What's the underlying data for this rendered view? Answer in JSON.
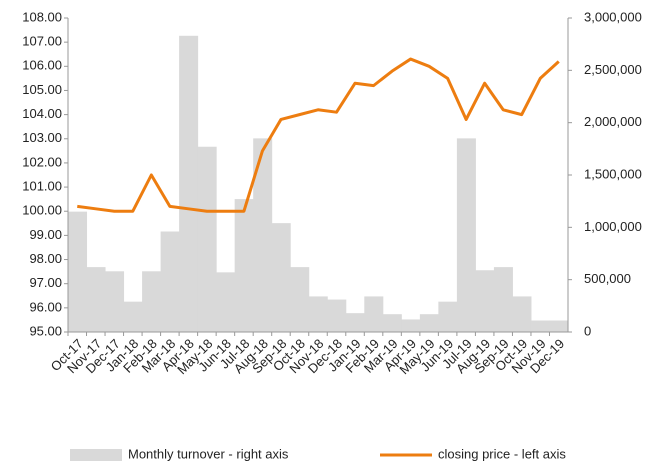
{
  "chart_data": {
    "type": "bar-line",
    "categories": [
      "Oct-17",
      "Nov-17",
      "Dec-17",
      "Jan-18",
      "Feb-18",
      "Mar-18",
      "Apr-18",
      "May-18",
      "Jun-18",
      "Jul-18",
      "Aug-18",
      "Sep-18",
      "Oct-18",
      "Nov-18",
      "Dec-18",
      "Jan-19",
      "Feb-19",
      "Mar-19",
      "Apr-19",
      "May-19",
      "Jun-19",
      "Jul-19",
      "Aug-19",
      "Sep-19",
      "Oct-19",
      "Nov-19",
      "Dec-19"
    ],
    "series": [
      {
        "name": "Monthly turnover - right axis",
        "type": "bar",
        "axis": "y2",
        "color": "#d9d9d9",
        "values": [
          1150000,
          620000,
          580000,
          290000,
          580000,
          960000,
          2830000,
          1770000,
          570000,
          1270000,
          1850000,
          1040000,
          620000,
          340000,
          310000,
          180000,
          340000,
          170000,
          120000,
          170000,
          290000,
          1850000,
          590000,
          620000,
          340000,
          110000,
          110000
        ]
      },
      {
        "name": "closing price - left axis",
        "type": "line",
        "axis": "y",
        "color": "#ed7d10",
        "values": [
          100.2,
          100.1,
          100.0,
          100.0,
          101.5,
          100.2,
          100.1,
          100.0,
          100.0,
          100.0,
          102.5,
          103.8,
          104.0,
          104.2,
          104.1,
          105.3,
          105.2,
          105.8,
          106.3,
          106.0,
          105.5,
          103.8,
          105.3,
          104.2,
          104.0,
          105.5,
          106.2
        ]
      }
    ],
    "ylim": [
      95,
      108
    ],
    "yticks": [
      {
        "value": 95,
        "label": "95.00"
      },
      {
        "value": 96,
        "label": "96.00"
      },
      {
        "value": 97,
        "label": "97.00"
      },
      {
        "value": 98,
        "label": "98.00"
      },
      {
        "value": 99,
        "label": "99.00"
      },
      {
        "value": 100,
        "label": "100.00"
      },
      {
        "value": 101,
        "label": "101.00"
      },
      {
        "value": 102,
        "label": "102.00"
      },
      {
        "value": 103,
        "label": "103.00"
      },
      {
        "value": 104,
        "label": "104.00"
      },
      {
        "value": 105,
        "label": "105.00"
      },
      {
        "value": 106,
        "label": "106.00"
      },
      {
        "value": 107,
        "label": "107.00"
      },
      {
        "value": 108,
        "label": "108.00"
      }
    ],
    "y2lim": [
      0,
      3000000
    ],
    "y2ticks": [
      0,
      {
        "value": 500000,
        "label": "500,000"
      },
      {
        "value": 1000000,
        "label": "1,000,000"
      },
      {
        "value": 1500000,
        "label": "1,500,000"
      },
      {
        "value": 2000000,
        "label": "2,000,000"
      },
      {
        "value": 2500000,
        "label": "2,500,000"
      },
      {
        "value": 3000000,
        "label": "3,000,000"
      }
    ],
    "legend": "bottom"
  }
}
